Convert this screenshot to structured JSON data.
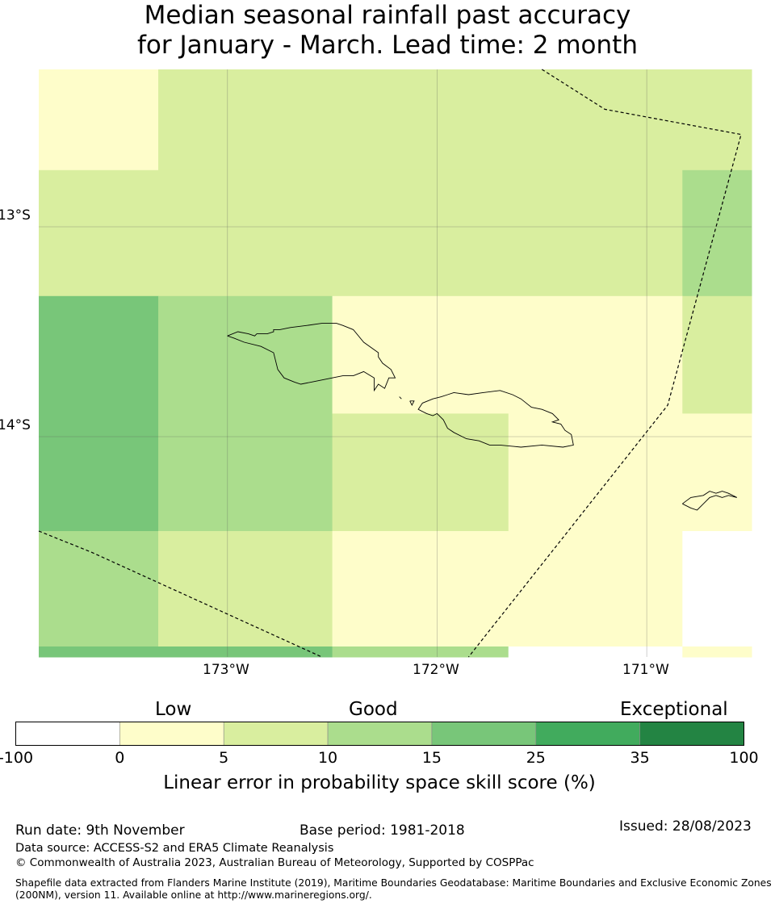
{
  "title": {
    "line1": "Median seasonal rainfall past accuracy",
    "line2": "for January - March. Lead time: 2 month"
  },
  "map": {
    "lat_labels": [
      "13°S",
      "14°S"
    ],
    "lon_labels": [
      "173°W",
      "172°W",
      "171°W"
    ],
    "lon_range": [
      -173.9,
      -170.5
    ],
    "lat_range": [
      -12.25,
      -15.05
    ],
    "grid_lines": {
      "lons": [
        -173,
        -172,
        -171
      ],
      "lats": [
        -13,
        -14
      ]
    },
    "skill_grid": [
      {
        "lon": [
          -173.9,
          -173.33
        ],
        "lat": [
          -12.25,
          -12.73
        ],
        "class": 1
      },
      {
        "lon": [
          -173.33,
          -170.5
        ],
        "lat": [
          -12.25,
          -12.73
        ],
        "class": 2
      },
      {
        "lon": [
          -173.9,
          -170.83
        ],
        "lat": [
          -12.73,
          -13.33
        ],
        "class": 2
      },
      {
        "lon": [
          -170.83,
          -170.5
        ],
        "lat": [
          -12.73,
          -13.33
        ],
        "class": 3
      },
      {
        "lon": [
          -173.9,
          -173.33
        ],
        "lat": [
          -13.33,
          -14.45
        ],
        "class": 4
      },
      {
        "lon": [
          -173.33,
          -172.5
        ],
        "lat": [
          -13.33,
          -14.45
        ],
        "class": 3
      },
      {
        "lon": [
          -172.5,
          -170.83
        ],
        "lat": [
          -13.33,
          -13.89
        ],
        "class": 1
      },
      {
        "lon": [
          -170.83,
          -170.5
        ],
        "lat": [
          -13.33,
          -13.89
        ],
        "class": 2
      },
      {
        "lon": [
          -172.5,
          -171.66
        ],
        "lat": [
          -13.89,
          -14.45
        ],
        "class": 2
      },
      {
        "lon": [
          -171.66,
          -170.5
        ],
        "lat": [
          -13.89,
          -14.45
        ],
        "class": 1
      },
      {
        "lon": [
          -173.9,
          -173.33
        ],
        "lat": [
          -14.45,
          -15.0
        ],
        "class": 3
      },
      {
        "lon": [
          -173.33,
          -172.5
        ],
        "lat": [
          -14.45,
          -15.0
        ],
        "class": 2
      },
      {
        "lon": [
          -172.5,
          -170.83
        ],
        "lat": [
          -14.45,
          -15.0
        ],
        "class": 1
      },
      {
        "lon": [
          -170.83,
          -170.5
        ],
        "lat": [
          -14.45,
          -15.0
        ],
        "class": 0
      },
      {
        "lon": [
          -173.9,
          -172.5
        ],
        "lat": [
          -15.0,
          -15.05
        ],
        "class": 4
      },
      {
        "lon": [
          -172.5,
          -171.66
        ],
        "lat": [
          -15.0,
          -15.05
        ],
        "class": 3
      },
      {
        "lon": [
          -171.66,
          -170.83
        ],
        "lat": [
          -15.0,
          -15.05
        ],
        "class": 0
      },
      {
        "lon": [
          -170.83,
          -170.5
        ],
        "lat": [
          -15.0,
          -15.05
        ],
        "class": 1
      }
    ],
    "eez_boundaries": [
      [
        [
          -171.5,
          -12.25
        ],
        [
          -171.2,
          -12.44
        ],
        [
          -170.55,
          -12.56
        ],
        [
          -170.9,
          -13.85
        ],
        [
          -171.85,
          -15.05
        ]
      ],
      [
        [
          -173.9,
          -14.45
        ],
        [
          -173.65,
          -14.55
        ],
        [
          -172.55,
          -15.05
        ]
      ]
    ],
    "islands": [
      [
        [
          -173.0,
          -13.52
        ],
        [
          -172.95,
          -13.5
        ],
        [
          -172.9,
          -13.51
        ],
        [
          -172.87,
          -13.52
        ],
        [
          -172.86,
          -13.51
        ],
        [
          -172.81,
          -13.51
        ],
        [
          -172.78,
          -13.5
        ],
        [
          -172.78,
          -13.49
        ],
        [
          -172.75,
          -13.49
        ],
        [
          -172.7,
          -13.48
        ],
        [
          -172.62,
          -13.47
        ],
        [
          -172.55,
          -13.46
        ],
        [
          -172.48,
          -13.46
        ],
        [
          -172.45,
          -13.47
        ],
        [
          -172.4,
          -13.49
        ],
        [
          -172.35,
          -13.55
        ],
        [
          -172.28,
          -13.6
        ],
        [
          -172.28,
          -13.62
        ],
        [
          -172.26,
          -13.65
        ],
        [
          -172.22,
          -13.68
        ],
        [
          -172.2,
          -13.72
        ],
        [
          -172.23,
          -13.72
        ],
        [
          -172.25,
          -13.77
        ],
        [
          -172.28,
          -13.75
        ],
        [
          -172.3,
          -13.78
        ],
        [
          -172.3,
          -13.72
        ],
        [
          -172.35,
          -13.69
        ],
        [
          -172.4,
          -13.71
        ],
        [
          -172.45,
          -13.71
        ],
        [
          -172.5,
          -13.72
        ],
        [
          -172.55,
          -13.73
        ],
        [
          -172.6,
          -13.74
        ],
        [
          -172.65,
          -13.75
        ],
        [
          -172.68,
          -13.74
        ],
        [
          -172.73,
          -13.72
        ],
        [
          -172.76,
          -13.68
        ],
        [
          -172.78,
          -13.6
        ],
        [
          -172.84,
          -13.57
        ],
        [
          -172.92,
          -13.55
        ],
        [
          -172.97,
          -13.53
        ],
        [
          -173.0,
          -13.52
        ]
      ],
      [
        [
          -171.95,
          -13.8
        ],
        [
          -171.92,
          -13.79
        ],
        [
          -171.85,
          -13.8
        ],
        [
          -171.78,
          -13.79
        ],
        [
          -171.7,
          -13.78
        ],
        [
          -171.64,
          -13.8
        ],
        [
          -171.6,
          -13.82
        ],
        [
          -171.55,
          -13.86
        ],
        [
          -171.5,
          -13.87
        ],
        [
          -171.45,
          -13.89
        ],
        [
          -171.42,
          -13.92
        ],
        [
          -171.45,
          -13.93
        ],
        [
          -171.41,
          -13.94
        ],
        [
          -171.39,
          -13.97
        ],
        [
          -171.36,
          -13.99
        ],
        [
          -171.35,
          -14.04
        ],
        [
          -171.4,
          -14.05
        ],
        [
          -171.5,
          -14.04
        ],
        [
          -171.6,
          -14.05
        ],
        [
          -171.7,
          -14.04
        ],
        [
          -171.75,
          -14.04
        ],
        [
          -171.8,
          -14.02
        ],
        [
          -171.86,
          -14.01
        ],
        [
          -171.92,
          -13.98
        ],
        [
          -171.95,
          -13.96
        ],
        [
          -171.97,
          -13.92
        ],
        [
          -172.0,
          -13.89
        ],
        [
          -172.02,
          -13.9
        ],
        [
          -172.05,
          -13.89
        ],
        [
          -172.09,
          -13.87
        ],
        [
          -172.07,
          -13.84
        ],
        [
          -172.02,
          -13.82
        ],
        [
          -171.98,
          -13.81
        ],
        [
          -171.95,
          -13.8
        ]
      ],
      [
        [
          -170.83,
          -14.32
        ],
        [
          -170.79,
          -14.29
        ],
        [
          -170.73,
          -14.28
        ],
        [
          -170.7,
          -14.26
        ],
        [
          -170.67,
          -14.27
        ],
        [
          -170.64,
          -14.26
        ],
        [
          -170.61,
          -14.27
        ],
        [
          -170.57,
          -14.29
        ],
        [
          -170.61,
          -14.28
        ],
        [
          -170.64,
          -14.29
        ],
        [
          -170.67,
          -14.28
        ],
        [
          -170.7,
          -14.29
        ],
        [
          -170.73,
          -14.32
        ],
        [
          -170.76,
          -14.35
        ],
        [
          -170.79,
          -14.34
        ],
        [
          -170.83,
          -14.32
        ]
      ],
      [
        [
          -172.18,
          -13.81
        ],
        [
          -172.17,
          -13.82
        ]
      ],
      [
        [
          -172.13,
          -13.83
        ],
        [
          -172.12,
          -13.85
        ],
        [
          -172.11,
          -13.83
        ],
        [
          -172.13,
          -13.83
        ]
      ]
    ]
  },
  "colorbar": {
    "categories": [
      "Low",
      "Good",
      "Exceptional"
    ],
    "ticks": [
      "-100",
      "0",
      "5",
      "10",
      "15",
      "25",
      "35",
      "100"
    ],
    "colors": [
      "#ffffff",
      "#fefdca",
      "#d9ee9f",
      "#abdd8d",
      "#78c679",
      "#41ab5d",
      "#238443"
    ],
    "label": "Linear error in probability space skill score (%)"
  },
  "footer": {
    "run_date": "Run date: 9th November",
    "base_period": "Base period: 1981-2018",
    "issued": "Issued: 28/08/2023",
    "data_source": "Data source: ACCESS-S2 and ERA5 Climate Reanalysis",
    "copyright": "© Commonwealth of Australia 2023, Australian Bureau of Meteorology, Supported by COSPPac",
    "shapefile_line1": "Shapefile data extracted from Flanders Marine Institute (2019), Maritime Boundaries Geodatabase: Maritime Boundaries and Exclusive Economic Zones",
    "shapefile_line2": "(200NM), version 11. Available online at http://www.marineregions.org/."
  }
}
